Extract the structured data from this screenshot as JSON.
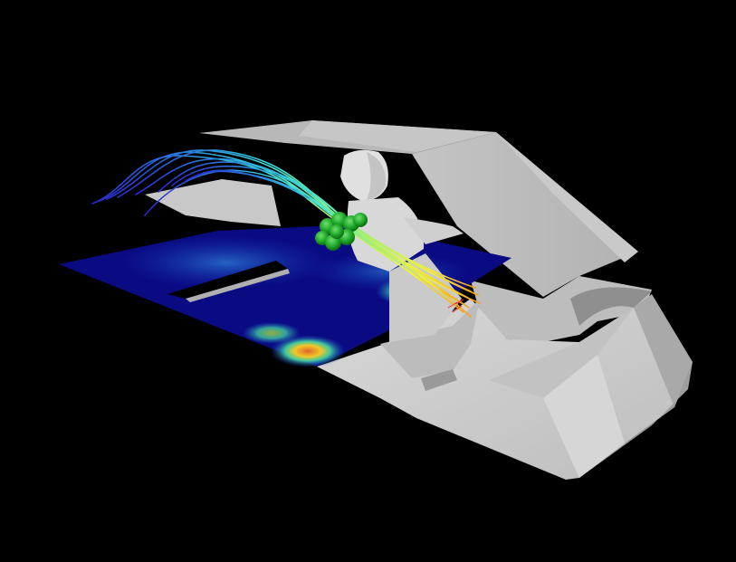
{
  "scene": {
    "background_color": "#000000",
    "cabin_color": "#cfcfcf",
    "cabin_shadow_color": "#a9a9a9",
    "cabin_highlight_color": "#e6e6e6",
    "mannequin_color": "#dcdcdc",
    "particle_color": "#1fa82a",
    "contour_colormap": [
      "#0a0a82",
      "#1330b8",
      "#1e78c8",
      "#3cc8a0",
      "#b4dc3c",
      "#f0c828",
      "#e0642a"
    ],
    "streamline_colormap": [
      "#2a2ad0",
      "#2a8ae0",
      "#3ce0d8",
      "#a8f070",
      "#f0f040",
      "#f0a020"
    ]
  }
}
